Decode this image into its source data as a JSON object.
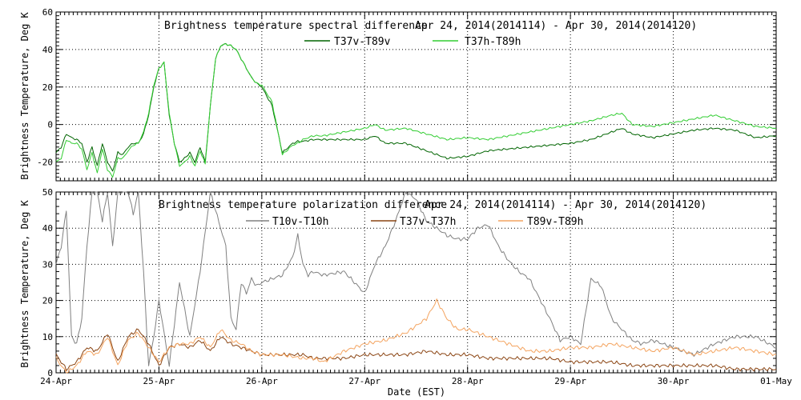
{
  "chart_data": [
    {
      "type": "line",
      "title": "Brightness temperature spectral difference",
      "date_range": "Apr 24, 2014(2014114) - Apr 30, 2014(2014120)",
      "ylabel": "Brightness Temperature, Deg K",
      "xlabel": "",
      "ylim": [
        -30,
        60
      ],
      "yticks": [
        -20,
        0,
        20,
        40,
        60
      ],
      "xlim": [
        0,
        7
      ],
      "grid": true,
      "legend_position": "top-center",
      "series": [
        {
          "name": "T37v-T89v",
          "color": "#006400",
          "x": [
            0,
            0.05,
            0.1,
            0.15,
            0.2,
            0.25,
            0.3,
            0.35,
            0.4,
            0.45,
            0.5,
            0.55,
            0.6,
            0.65,
            0.7,
            0.75,
            0.8,
            0.85,
            0.9,
            0.95,
            1.0,
            1.05,
            1.1,
            1.15,
            1.2,
            1.25,
            1.3,
            1.35,
            1.4,
            1.45,
            1.5,
            1.55,
            1.6,
            1.65,
            1.7,
            1.75,
            1.8,
            1.85,
            1.9,
            1.95,
            2.0,
            2.1,
            2.2,
            2.3,
            2.35,
            2.4,
            2.5,
            2.6,
            2.8,
            3.0,
            3.1,
            3.2,
            3.4,
            3.6,
            3.8,
            4.0,
            4.2,
            4.4,
            4.6,
            4.8,
            5.0,
            5.2,
            5.4,
            5.5,
            5.6,
            5.8,
            6.0,
            6.2,
            6.4,
            6.6,
            6.8,
            7.0
          ],
          "values": [
            -15,
            -12,
            -5,
            -7,
            -8,
            -10,
            -20,
            -12,
            -22,
            -10,
            -20,
            -25,
            -15,
            -16,
            -12,
            -10,
            -10,
            -5,
            5,
            20,
            30,
            33,
            5,
            -10,
            -20,
            -18,
            -15,
            -20,
            -12,
            -20,
            10,
            35,
            42,
            43,
            42,
            40,
            35,
            30,
            25,
            22,
            20,
            10,
            -15,
            -10,
            -9,
            -9,
            -8,
            -8,
            -8,
            -8,
            -6,
            -10,
            -10,
            -14,
            -18,
            -17,
            -14,
            -13,
            -12,
            -11,
            -10,
            -8,
            -4,
            -2,
            -5,
            -7,
            -5,
            -3,
            -2,
            -3,
            -7,
            -6
          ]
        },
        {
          "name": "T37h-T89h",
          "color": "#32CD32",
          "x": [
            0,
            0.05,
            0.1,
            0.15,
            0.2,
            0.25,
            0.3,
            0.35,
            0.4,
            0.45,
            0.5,
            0.55,
            0.6,
            0.65,
            0.7,
            0.75,
            0.8,
            0.85,
            0.9,
            0.95,
            1.0,
            1.05,
            1.1,
            1.15,
            1.2,
            1.25,
            1.3,
            1.35,
            1.4,
            1.45,
            1.5,
            1.55,
            1.6,
            1.65,
            1.7,
            1.75,
            1.8,
            1.85,
            1.9,
            1.95,
            2.0,
            2.1,
            2.2,
            2.3,
            2.35,
            2.4,
            2.5,
            2.6,
            2.8,
            3.0,
            3.1,
            3.2,
            3.4,
            3.6,
            3.8,
            4.0,
            4.2,
            4.4,
            4.6,
            4.8,
            5.0,
            5.2,
            5.4,
            5.5,
            5.6,
            5.8,
            6.0,
            6.2,
            6.4,
            6.6,
            6.8,
            7.0
          ],
          "values": [
            -20,
            -18,
            -8,
            -10,
            -10,
            -13,
            -24,
            -15,
            -26,
            -13,
            -24,
            -28,
            -18,
            -18,
            -14,
            -11,
            -10,
            -4,
            6,
            21,
            30,
            33,
            6,
            -10,
            -22,
            -20,
            -17,
            -22,
            -14,
            -21,
            10,
            35,
            42,
            43,
            42,
            40,
            35,
            30,
            25,
            22,
            21,
            12,
            -16,
            -11,
            -10,
            -8,
            -6,
            -6,
            -4,
            -2,
            0,
            -3,
            -2,
            -5,
            -8,
            -7,
            -8,
            -6,
            -4,
            -2,
            0,
            2,
            5,
            6,
            0,
            -1,
            1,
            3,
            5,
            2,
            -1,
            -2
          ]
        }
      ]
    },
    {
      "type": "line",
      "title": "Brightness temperature polarization difference",
      "date_range": "Apr 24, 2014(2014114) - Apr 30, 2014(2014120)",
      "ylabel": "Brightness Temperature, Deg K",
      "xlabel": "Date (EST)",
      "ylim": [
        0,
        50
      ],
      "yticks": [
        0,
        10,
        20,
        30,
        40,
        50
      ],
      "xlim": [
        0,
        7
      ],
      "x_tick_labels": [
        "24-Apr",
        "25-Apr",
        "26-Apr",
        "27-Apr",
        "28-Apr",
        "29-Apr",
        "30-Apr",
        "01-May"
      ],
      "grid": true,
      "legend_position": "top-center",
      "series": [
        {
          "name": "T10v-T10h",
          "color": "#808080",
          "x": [
            0,
            0.05,
            0.1,
            0.15,
            0.2,
            0.25,
            0.3,
            0.35,
            0.4,
            0.45,
            0.5,
            0.55,
            0.6,
            0.65,
            0.7,
            0.75,
            0.8,
            0.85,
            0.9,
            0.95,
            1.0,
            1.1,
            1.2,
            1.3,
            1.4,
            1.5,
            1.55,
            1.6,
            1.65,
            1.7,
            1.75,
            1.8,
            1.85,
            1.9,
            1.95,
            2.0,
            2.1,
            2.2,
            2.3,
            2.35,
            2.4,
            2.45,
            2.5,
            2.6,
            2.8,
            3.0,
            3.1,
            3.2,
            3.3,
            3.4,
            3.5,
            3.6,
            3.7,
            3.8,
            3.9,
            4.0,
            4.1,
            4.2,
            4.3,
            4.4,
            4.5,
            4.6,
            4.8,
            4.9,
            5.0,
            5.1,
            5.2,
            5.3,
            5.4,
            5.5,
            5.6,
            5.7,
            5.8,
            6.0,
            6.2,
            6.4,
            6.6,
            6.8,
            7.0
          ],
          "values": [
            30,
            35,
            45,
            10,
            8,
            15,
            35,
            50,
            50,
            42,
            50,
            35,
            50,
            50,
            50,
            44,
            50,
            28,
            2,
            10,
            20,
            2,
            25,
            10,
            28,
            50,
            45,
            40,
            35,
            15,
            12,
            25,
            22,
            26,
            24,
            25,
            26,
            27,
            32,
            38,
            30,
            27,
            28,
            27,
            28,
            22,
            30,
            35,
            42,
            50,
            48,
            42,
            40,
            38,
            37,
            37,
            40,
            41,
            35,
            31,
            28,
            26,
            15,
            9,
            10,
            8,
            26,
            24,
            15,
            12,
            9,
            8,
            9,
            7,
            5,
            8,
            10,
            10,
            7
          ]
        },
        {
          "name": "T37v-T37h",
          "color": "#8B4513",
          "x": [
            0,
            0.1,
            0.2,
            0.3,
            0.4,
            0.5,
            0.6,
            0.7,
            0.8,
            0.9,
            1.0,
            1.1,
            1.2,
            1.3,
            1.4,
            1.5,
            1.6,
            1.7,
            1.8,
            1.9,
            2.0,
            2.2,
            2.4,
            2.5,
            2.6,
            2.8,
            3.0,
            3.2,
            3.4,
            3.6,
            3.8,
            4.0,
            4.2,
            4.4,
            4.6,
            4.8,
            5.0,
            5.2,
            5.4,
            5.6,
            5.8,
            6.0,
            6.2,
            6.4,
            6.6,
            6.8,
            7.0
          ],
          "values": [
            5,
            1,
            3,
            7,
            6,
            11,
            3,
            10,
            12,
            8,
            2,
            7,
            8,
            7,
            9,
            6,
            10,
            8,
            7,
            6,
            5,
            5,
            5,
            4,
            4,
            4,
            5,
            5,
            5,
            6,
            5,
            5,
            4,
            4,
            4,
            4,
            3,
            3,
            3,
            2,
            2,
            2,
            2,
            2,
            1,
            1,
            1
          ]
        },
        {
          "name": "T89v-T89h",
          "color": "#F4A460",
          "x": [
            0,
            0.1,
            0.2,
            0.3,
            0.4,
            0.5,
            0.6,
            0.7,
            0.8,
            0.9,
            1.0,
            1.1,
            1.2,
            1.3,
            1.4,
            1.5,
            1.6,
            1.7,
            1.8,
            1.9,
            2.0,
            2.2,
            2.4,
            2.5,
            2.6,
            2.8,
            3.0,
            3.2,
            3.4,
            3.6,
            3.7,
            3.8,
            3.9,
            4.0,
            4.2,
            4.4,
            4.6,
            4.8,
            5.0,
            5.2,
            5.4,
            5.6,
            5.8,
            6.0,
            6.2,
            6.4,
            6.6,
            6.8,
            7.0
          ],
          "values": [
            4,
            0,
            2,
            6,
            5,
            10,
            2,
            9,
            11,
            7,
            3,
            7,
            8,
            8,
            10,
            7,
            12,
            9,
            8,
            6,
            5,
            5,
            4,
            4,
            3,
            6,
            8,
            9,
            11,
            15,
            20,
            15,
            12,
            12,
            10,
            8,
            6,
            6,
            7,
            7,
            8,
            7,
            6,
            7,
            5,
            6,
            7,
            6,
            5
          ]
        }
      ]
    }
  ]
}
